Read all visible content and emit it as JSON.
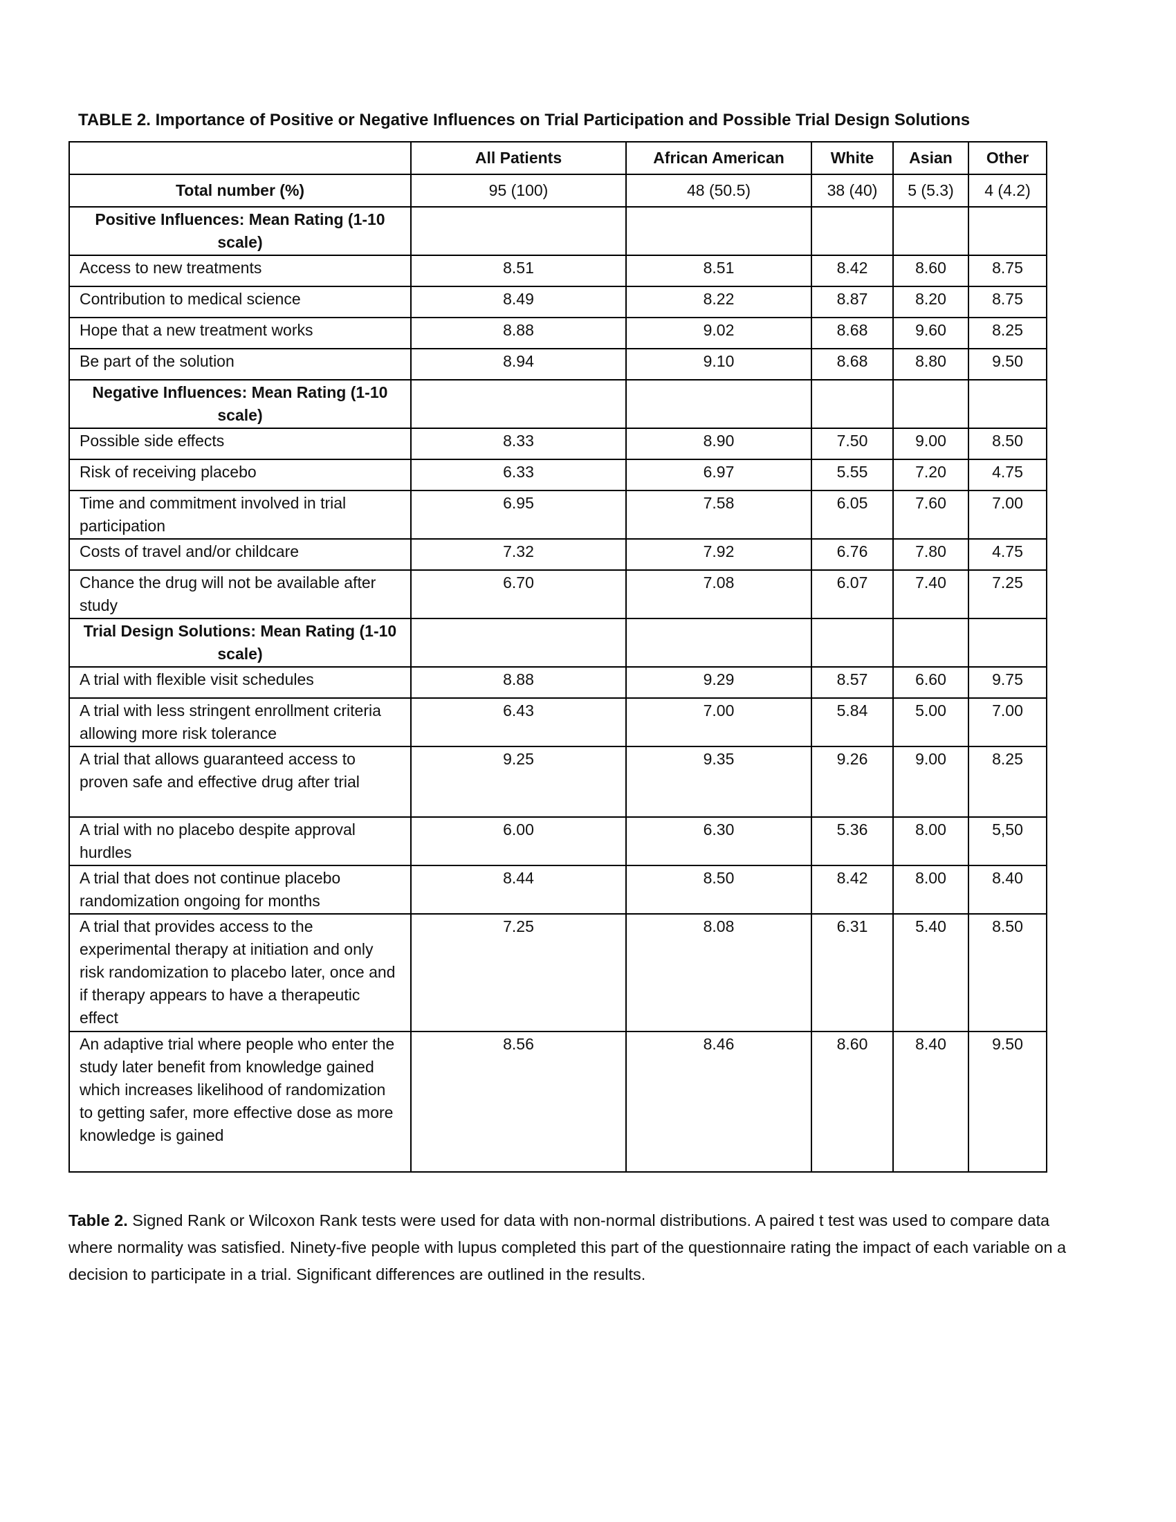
{
  "title": "TABLE 2.  Importance of Positive or Negative Influences on Trial Participation and Possible Trial Design Solutions",
  "columns": [
    "",
    "All Patients",
    "African American",
    "White",
    "Asian",
    "Other"
  ],
  "total_row": {
    "label": "Total number (%)",
    "values": [
      "95 (100)",
      "48 (50.5)",
      "38 (40)",
      "5 (5.3)",
      "4 (4.2)"
    ]
  },
  "sections": [
    {
      "heading": "Positive Influences: Mean Rating (1-10 scale)",
      "rows": [
        {
          "label": "Access to new treatments",
          "values": [
            "8.51",
            "8.51",
            "8.42",
            "8.60",
            "8.75"
          ]
        },
        {
          "label": "Contribution to medical science",
          "values": [
            "8.49",
            "8.22",
            "8.87",
            "8.20",
            "8.75"
          ]
        },
        {
          "label": "Hope that a new treatment works",
          "values": [
            "8.88",
            "9.02",
            "8.68",
            "9.60",
            "8.25"
          ]
        },
        {
          "label": "Be part of the solution",
          "values": [
            "8.94",
            "9.10",
            "8.68",
            "8.80",
            "9.50"
          ]
        }
      ]
    },
    {
      "heading": "Negative Influences: Mean Rating (1-10 scale)",
      "rows": [
        {
          "label": "Possible side effects",
          "values": [
            "8.33",
            "8.90",
            "7.50",
            "9.00",
            "8.50"
          ]
        },
        {
          "label": "Risk of receiving placebo",
          "values": [
            "6.33",
            "6.97",
            "5.55",
            "7.20",
            "4.75"
          ]
        },
        {
          "label": "Time and commitment involved in trial participation",
          "values": [
            "6.95",
            "7.58",
            "6.05",
            "7.60",
            "7.00"
          ]
        },
        {
          "label": "Costs of travel and/or childcare",
          "values": [
            "7.32",
            "7.92",
            "6.76",
            "7.80",
            "4.75"
          ]
        },
        {
          "label": "Chance the drug will not be available after study",
          "values": [
            "6.70",
            "7.08",
            "6.07",
            "7.40",
            "7.25"
          ]
        }
      ]
    },
    {
      "heading": "Trial Design Solutions: Mean Rating (1-10 scale)",
      "rows": [
        {
          "label": "A trial with flexible visit schedules",
          "values": [
            "8.88",
            "9.29",
            "8.57",
            "6.60",
            "9.75"
          ]
        },
        {
          "label": "A trial with less stringent enrollment criteria allowing more risk tolerance",
          "values": [
            "6.43",
            "7.00",
            "5.84",
            "5.00",
            "7.00"
          ]
        },
        {
          "label": "A trial that allows guaranteed access to proven safe and effective drug after trial",
          "values": [
            "9.25",
            "9.35",
            "9.26",
            "9.00",
            "8.25"
          ]
        },
        {
          "label": "A trial with no placebo despite approval hurdles",
          "values": [
            "6.00",
            "6.30",
            "5.36",
            "8.00",
            "5,50"
          ]
        },
        {
          "label": "A trial that does not continue placebo randomization ongoing for months",
          "values": [
            "8.44",
            "8.50",
            "8.42",
            "8.00",
            "8.40"
          ]
        },
        {
          "label": "A trial that provides access to the experimental therapy at initiation and only risk randomization to placebo later, once and if therapy appears to have a therapeutic effect",
          "values": [
            "7.25",
            "8.08",
            "6.31",
            "5.40",
            "8.50"
          ]
        },
        {
          "label": "An adaptive trial where people who enter the study later benefit from knowledge gained which increases likelihood of randomization to  getting safer, more effective dose as more knowledge is gained",
          "values": [
            "8.56",
            "8.46",
            "8.60",
            "8.40",
            "9.50"
          ]
        }
      ]
    }
  ],
  "caption": {
    "lead": "Table 2.",
    "text": " Signed Rank or Wilcoxon Rank tests were used for data with non-normal distributions. A paired t test was used to compare data where normality was satisfied. Ninety-five people with lupus completed this part of the questionnaire rating the impact of each variable on a decision to participate in a trial. Significant differences are outlined in the results."
  }
}
